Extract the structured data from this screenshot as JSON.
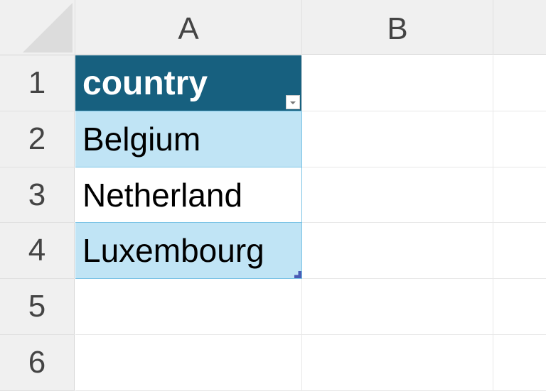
{
  "columns": [
    "A",
    "B"
  ],
  "rows": [
    "1",
    "2",
    "3",
    "4",
    "5",
    "6"
  ],
  "table": {
    "header": "country",
    "values": [
      "Belgium",
      "Netherland",
      "Luxembourg"
    ],
    "header_color": "#17607f",
    "band_color": "#c0e4f5",
    "filter_icon": "dropdown-arrow-icon"
  }
}
